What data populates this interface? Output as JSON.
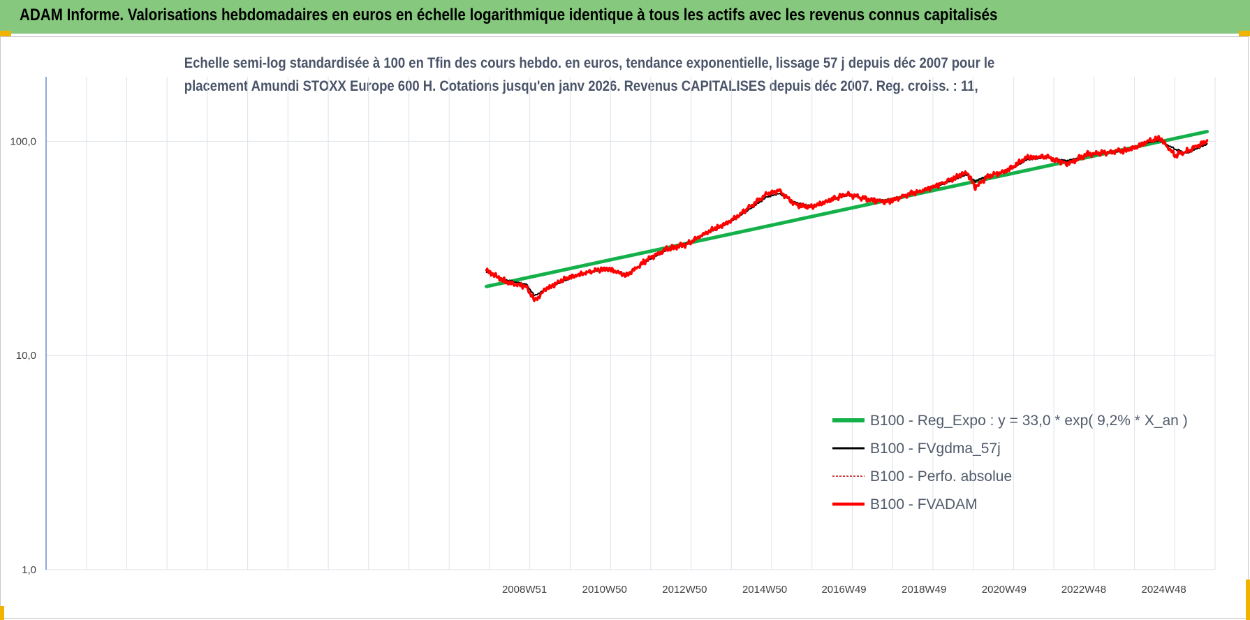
{
  "banner": {
    "title": "ADAM Informe. Valorisations hebdomadaires en euros en échelle logarithmique identique à tous les actifs avec les revenus connus capitalisés"
  },
  "colors": {
    "banner_bg": "#86c97e",
    "accent_marks": "#f0b400",
    "trend_line": "#14b14a",
    "smoothed_line": "#000000",
    "absolute_line": "#c00000",
    "adam_line": "#ff0000"
  },
  "chart_data": {
    "type": "line",
    "title_lines": [
      "Echelle semi-log standardisée à 100 en Tfin des cours hebdo. en euros, tendance exponentielle, lissage 57 j depuis déc 2007 pour le",
      "placement Amundi STOXX Europe 600 H. Cotations jusqu'en janv 2026. Revenus CAPITALISES depuis déc 2007. Reg. croiss. : 11,"
    ],
    "xlabel": "",
    "ylabel": "",
    "y_scale": "log",
    "ylim": [
      1,
      200
    ],
    "y_ticks": [
      {
        "value": 1,
        "label": "1,0"
      },
      {
        "value": 10,
        "label": "10,0"
      },
      {
        "value": 100,
        "label": "100,0"
      }
    ],
    "xlim": [
      1997.0,
      2026.2
    ],
    "x_ticks": [
      {
        "value": 2008.95,
        "label": "2008W51"
      },
      {
        "value": 2010.95,
        "label": "2010W50"
      },
      {
        "value": 2012.95,
        "label": "2012W50"
      },
      {
        "value": 2014.95,
        "label": "2014W50"
      },
      {
        "value": 2016.93,
        "label": "2016W49"
      },
      {
        "value": 2018.93,
        "label": "2018W49"
      },
      {
        "value": 2020.93,
        "label": "2020W49"
      },
      {
        "value": 2022.92,
        "label": "2022W48"
      },
      {
        "value": 2024.92,
        "label": "2024W48"
      }
    ],
    "grid": true,
    "legend_position": "bottom-right",
    "series": [
      {
        "name": "B100 - Reg_Expo : y = 33,0 * exp( 9,2% *  X_an )",
        "key": "trend",
        "x": [
          2008.0,
          2026.0
        ],
        "values": [
          21.0,
          111.0
        ]
      },
      {
        "name": "B100 - FVgdma_57j",
        "key": "smoothed",
        "x": [
          2008.0,
          2008.5,
          2009.0,
          2009.2,
          2009.5,
          2010.0,
          2010.5,
          2011.0,
          2011.5,
          2012.0,
          2012.5,
          2013.0,
          2013.5,
          2014.0,
          2014.5,
          2015.0,
          2015.3,
          2015.7,
          2016.1,
          2016.5,
          2017.0,
          2017.5,
          2018.0,
          2018.5,
          2019.0,
          2019.5,
          2020.0,
          2020.2,
          2020.5,
          2021.0,
          2021.5,
          2022.0,
          2022.5,
          2023.0,
          2023.5,
          2024.0,
          2024.5,
          2024.8,
          2025.2,
          2025.5,
          2026.0
        ],
        "values": [
          24.5,
          22.5,
          21.5,
          19.0,
          20.5,
          22.5,
          24.5,
          25.0,
          24.0,
          27.5,
          31.0,
          33.5,
          37.0,
          41.0,
          47.0,
          55.0,
          57.0,
          52.0,
          50.0,
          52.0,
          56.0,
          54.0,
          53.0,
          56.0,
          59.0,
          64.0,
          70.0,
          65.0,
          69.0,
          72.0,
          82.0,
          84.0,
          81.0,
          86.0,
          88.0,
          90.0,
          98.0,
          101.0,
          92.0,
          88.0,
          97.0
        ]
      },
      {
        "name": "B100 - Perfo. absolue",
        "key": "absolute",
        "x": [
          2008.0,
          2008.5,
          2009.0,
          2009.2,
          2009.5,
          2010.0,
          2010.5,
          2011.0,
          2011.5,
          2012.0,
          2012.5,
          2013.0,
          2013.5,
          2014.0,
          2014.5,
          2015.0,
          2015.3,
          2015.7,
          2016.1,
          2016.5,
          2017.0,
          2017.5,
          2018.0,
          2018.5,
          2019.0,
          2019.5,
          2020.0,
          2020.2,
          2020.5,
          2021.0,
          2021.5,
          2022.0,
          2022.5,
          2023.0,
          2023.5,
          2024.0,
          2024.5,
          2024.8,
          2025.2,
          2025.5,
          2026.0
        ],
        "values": [
          25.0,
          22.0,
          21.0,
          18.0,
          20.5,
          23.0,
          24.5,
          25.5,
          23.5,
          28.0,
          31.5,
          33.0,
          37.5,
          41.5,
          48.0,
          57.0,
          59.0,
          51.0,
          49.0,
          52.5,
          57.0,
          53.5,
          52.0,
          56.5,
          59.5,
          65.0,
          72.0,
          61.0,
          68.0,
          73.0,
          84.0,
          85.0,
          78.0,
          87.0,
          88.5,
          91.0,
          99.0,
          104.0,
          86.0,
          90.0,
          100.0
        ]
      },
      {
        "name": "B100 - FVADAM",
        "key": "adam",
        "x": [
          2008.0,
          2008.5,
          2009.0,
          2009.2,
          2009.5,
          2010.0,
          2010.5,
          2011.0,
          2011.5,
          2012.0,
          2012.5,
          2013.0,
          2013.5,
          2014.0,
          2014.5,
          2015.0,
          2015.3,
          2015.7,
          2016.1,
          2016.5,
          2017.0,
          2017.5,
          2018.0,
          2018.5,
          2019.0,
          2019.5,
          2020.0,
          2020.2,
          2020.5,
          2021.0,
          2021.5,
          2022.0,
          2022.5,
          2023.0,
          2023.5,
          2024.0,
          2024.5,
          2024.8,
          2025.2,
          2025.5,
          2026.0
        ],
        "values": [
          25.0,
          22.0,
          21.0,
          18.0,
          20.5,
          23.0,
          24.5,
          25.5,
          23.5,
          28.0,
          31.5,
          33.0,
          37.5,
          41.5,
          48.0,
          57.0,
          59.0,
          51.0,
          49.0,
          52.5,
          57.0,
          53.5,
          52.0,
          56.5,
          59.5,
          65.0,
          72.0,
          61.0,
          68.0,
          73.0,
          84.0,
          85.0,
          78.0,
          87.0,
          88.5,
          91.0,
          99.0,
          104.0,
          86.0,
          90.0,
          100.0
        ]
      }
    ]
  }
}
